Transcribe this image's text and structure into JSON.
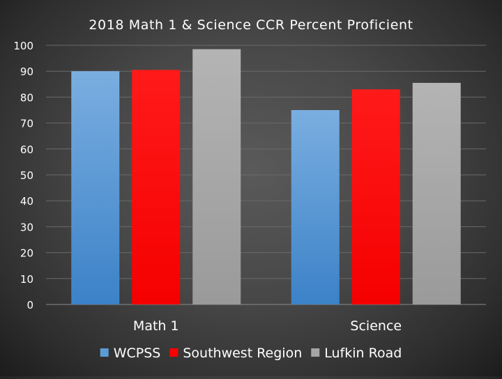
{
  "chart_data": {
    "type": "bar",
    "title": "2018 Math 1 & Science CCR Percent Proficient",
    "categories": [
      "Math 1",
      "Science"
    ],
    "series": [
      {
        "name": "WCPSS",
        "values": [
          90,
          75
        ],
        "color": "#5b9bd5"
      },
      {
        "name": "Southwest Region",
        "values": [
          90.5,
          83
        ],
        "color": "#ff0000"
      },
      {
        "name": "Lufkin Road",
        "values": [
          98.5,
          85.5
        ],
        "color": "#a5a5a5"
      }
    ],
    "ylim": [
      0,
      100
    ],
    "yticks": [
      "0",
      "10",
      "20",
      "30",
      "40",
      "50",
      "60",
      "70",
      "80",
      "90",
      "100"
    ],
    "grid": true,
    "legend_position": "bottom",
    "xlabel": "",
    "ylabel": ""
  }
}
